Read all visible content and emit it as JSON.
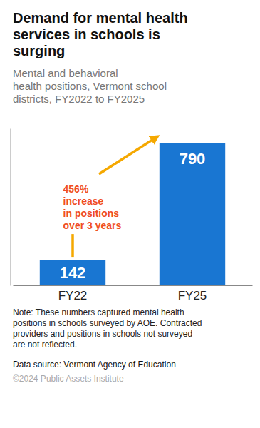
{
  "chart_data": {
    "type": "bar",
    "title": "Demand for mental health\nservices in schools is\nsurging",
    "subtitle": "Mental and behavioral\nhealth positions, Vermont school\ndistricts, FY2022 to FY2025",
    "categories": [
      "FY22",
      "FY25"
    ],
    "values": [
      142,
      790
    ],
    "color": "#1976D2",
    "ylim": [
      0,
      870
    ],
    "data_labels": true,
    "tick_labels": "x",
    "annotations": [
      "456%\nincrease\nin positions\nover 3 years"
    ],
    "notes": [
      "Note: These numbers captured mental health\npositions in schools surveyed by AOE. Contracted\nproviders and positions in schools not surveyed\nare not reflected.",
      "Data source: Vermont Agency of Education",
      "©2024 Public Assets Institute"
    ]
  }
}
